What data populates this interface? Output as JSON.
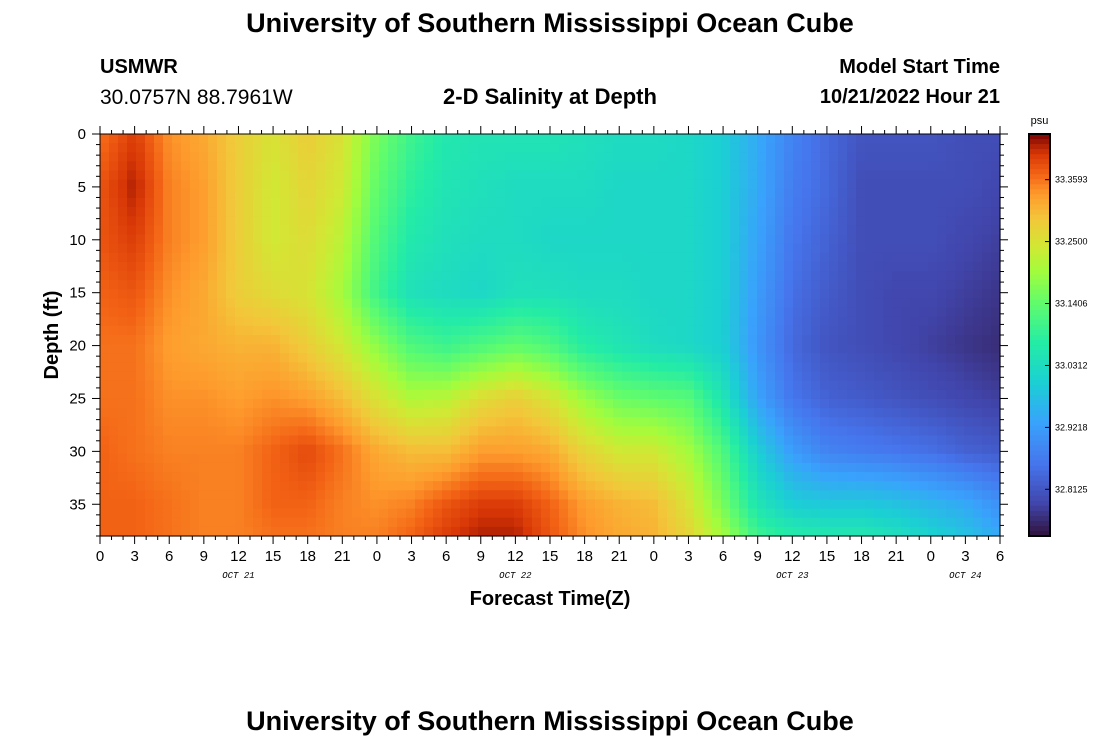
{
  "page": {
    "title": "University of Southern Mississippi Ocean Cube",
    "title_repeat": "University of Southern Mississippi Ocean Cube",
    "station": "USMWR",
    "coordinates": "30.0757N  88.7961W",
    "subtitle": "2-D Salinity at Depth",
    "model_start_label": "Model Start Time",
    "model_start_value": "10/21/2022 Hour 21"
  },
  "chart_data": {
    "type": "heatmap",
    "title": "2-D Salinity at Depth",
    "xlabel": "Forecast Time(Z)",
    "ylabel": "Depth (ft)",
    "x_hours": [
      0,
      3,
      6,
      9,
      12,
      15,
      18,
      21,
      24,
      27,
      30,
      33,
      36,
      39,
      42,
      45,
      48,
      51,
      54,
      57,
      60,
      63,
      66,
      69,
      72,
      75,
      78
    ],
    "x_tick_labels": [
      "0",
      "3",
      "6",
      "9",
      "12",
      "15",
      "18",
      "21",
      "0",
      "3",
      "6",
      "9",
      "12",
      "15",
      "18",
      "21",
      "0",
      "3",
      "6",
      "9",
      "12",
      "15",
      "18",
      "21",
      "0",
      "3",
      "6"
    ],
    "date_labels": [
      {
        "text": "OCT 21",
        "hour": 12
      },
      {
        "text": "OCT 22",
        "hour": 36
      },
      {
        "text": "OCT 23",
        "hour": 60
      },
      {
        "text": "OCT 24",
        "hour": 75
      }
    ],
    "y_ticks": [
      0,
      5,
      10,
      15,
      20,
      25,
      30,
      35
    ],
    "ylim": [
      0,
      38
    ],
    "xlim": [
      0,
      78
    ],
    "colorbar": {
      "unit": "psu",
      "tick_values": [
        33.3593,
        33.25,
        33.1406,
        33.0312,
        32.9218,
        32.8125
      ],
      "tick_labels": [
        "33.3593",
        "33.2500",
        "33.1406",
        "33.0312",
        "32.9218",
        "32.8125"
      ],
      "range": [
        32.73,
        33.44
      ]
    },
    "salinity_grid": {
      "depths": [
        0,
        5,
        10,
        15,
        20,
        25,
        30,
        35,
        38
      ],
      "hours": [
        0,
        3,
        6,
        9,
        12,
        15,
        18,
        21,
        24,
        27,
        30,
        33,
        36,
        39,
        42,
        45,
        48,
        51,
        54,
        57,
        60,
        63,
        66,
        69,
        72,
        75,
        78
      ],
      "values": [
        [
          33.36,
          33.4,
          33.34,
          33.32,
          33.28,
          33.25,
          33.28,
          33.25,
          33.16,
          33.1,
          33.06,
          33.05,
          33.05,
          33.05,
          33.04,
          33.03,
          33.03,
          33.02,
          33.0,
          32.94,
          32.88,
          32.84,
          32.81,
          32.81,
          32.81,
          32.8,
          32.8
        ],
        [
          33.38,
          33.42,
          33.35,
          33.33,
          33.28,
          33.24,
          33.27,
          33.24,
          33.14,
          33.08,
          33.05,
          33.04,
          33.03,
          33.03,
          33.03,
          33.02,
          33.02,
          33.02,
          33.0,
          32.94,
          32.87,
          32.84,
          32.8,
          32.8,
          32.8,
          32.8,
          32.79
        ],
        [
          33.38,
          33.4,
          33.35,
          33.33,
          33.28,
          33.24,
          33.26,
          33.22,
          33.12,
          33.06,
          33.04,
          33.03,
          33.03,
          33.02,
          33.02,
          33.02,
          33.02,
          33.02,
          33.0,
          32.93,
          32.86,
          32.83,
          32.8,
          32.8,
          32.8,
          32.79,
          32.78
        ],
        [
          33.37,
          33.38,
          33.34,
          33.32,
          33.28,
          33.26,
          33.25,
          33.2,
          33.1,
          33.04,
          33.03,
          33.02,
          33.04,
          33.04,
          33.03,
          33.03,
          33.02,
          33.02,
          33.0,
          32.92,
          32.85,
          32.82,
          32.8,
          32.79,
          32.79,
          32.78,
          32.77
        ],
        [
          33.36,
          33.36,
          33.33,
          33.32,
          33.31,
          33.31,
          33.28,
          33.24,
          33.18,
          33.12,
          33.1,
          33.12,
          33.14,
          33.12,
          33.07,
          33.05,
          33.03,
          33.02,
          33.0,
          32.91,
          32.84,
          32.81,
          32.8,
          32.79,
          32.78,
          32.77,
          32.76
        ],
        [
          33.36,
          33.36,
          33.34,
          33.34,
          33.33,
          33.34,
          33.33,
          33.3,
          33.25,
          33.21,
          33.22,
          33.26,
          33.28,
          33.25,
          33.19,
          33.15,
          33.14,
          33.13,
          33.05,
          32.93,
          32.86,
          32.83,
          32.82,
          32.81,
          32.8,
          32.79,
          32.78
        ],
        [
          33.37,
          33.36,
          33.35,
          33.35,
          33.35,
          33.37,
          33.39,
          33.36,
          33.32,
          33.3,
          33.3,
          33.33,
          33.33,
          33.32,
          33.27,
          33.24,
          33.24,
          33.2,
          33.12,
          33.0,
          32.92,
          32.88,
          32.87,
          32.86,
          32.85,
          32.83,
          32.82
        ],
        [
          33.37,
          33.37,
          33.36,
          33.35,
          33.35,
          33.37,
          33.37,
          33.35,
          33.34,
          33.35,
          33.38,
          33.4,
          33.4,
          33.37,
          33.33,
          33.31,
          33.3,
          33.25,
          33.16,
          33.05,
          33.0,
          32.99,
          32.99,
          32.98,
          32.96,
          32.94,
          32.9
        ],
        [
          33.37,
          33.37,
          33.36,
          33.35,
          33.35,
          33.36,
          33.36,
          33.35,
          33.35,
          33.37,
          33.4,
          33.42,
          33.42,
          33.38,
          33.34,
          33.32,
          33.31,
          33.27,
          33.2,
          33.1,
          33.07,
          33.06,
          33.06,
          33.04,
          33.01,
          32.98,
          32.94
        ]
      ]
    }
  }
}
